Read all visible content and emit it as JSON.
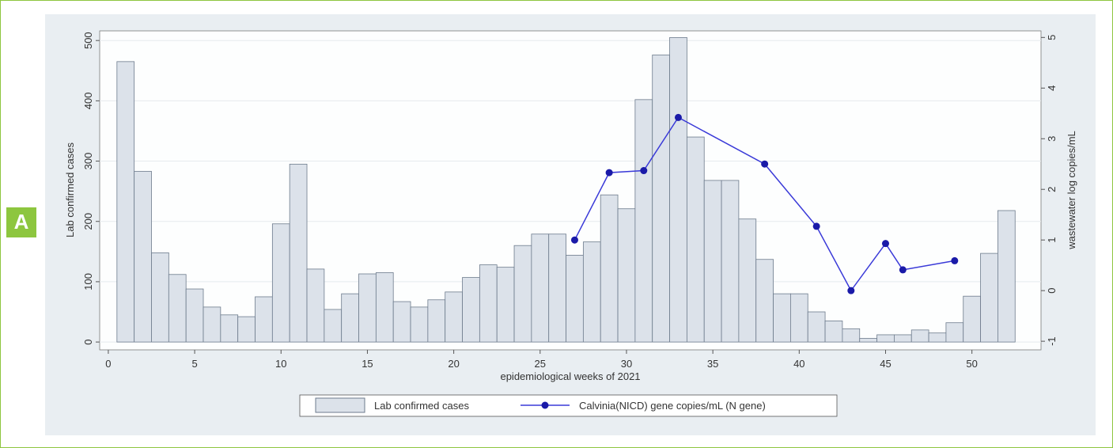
{
  "chart_data": {
    "type": "bar",
    "panel_label": "A",
    "xlabel": "epidemiological weeks of 2021",
    "ylabel": "Lab confirmed cases",
    "y2label": "wastewater log copies/mL",
    "x": [
      1,
      2,
      3,
      4,
      5,
      6,
      7,
      8,
      9,
      10,
      11,
      12,
      13,
      14,
      15,
      16,
      17,
      18,
      19,
      20,
      21,
      22,
      23,
      24,
      25,
      26,
      27,
      28,
      29,
      30,
      31,
      32,
      33,
      34,
      35,
      36,
      37,
      38,
      39,
      40,
      41,
      42,
      43,
      44,
      45,
      46,
      47,
      48,
      49,
      50,
      51,
      52
    ],
    "series": [
      {
        "name": "Lab confirmed cases",
        "type": "bar",
        "color": "#dce2ea",
        "values": [
          465,
          283,
          148,
          112,
          88,
          58,
          45,
          42,
          75,
          196,
          295,
          121,
          54,
          80,
          113,
          115,
          67,
          58,
          70,
          83,
          107,
          128,
          124,
          160,
          179,
          179,
          144,
          166,
          244,
          221,
          402,
          476,
          505,
          340,
          268,
          268,
          204,
          137,
          80,
          80,
          50,
          35,
          22,
          6,
          12,
          12,
          20,
          15,
          32,
          76,
          147,
          218
        ]
      },
      {
        "name": "Calvinia(NICD) gene copies/mL (N gene)",
        "type": "line",
        "axis": "y2",
        "color": "#3a3ad8",
        "x": [
          27,
          29,
          31,
          33,
          38,
          41,
          43,
          45,
          46,
          49
        ],
        "values": [
          1.0,
          2.33,
          2.37,
          3.42,
          2.5,
          1.27,
          0,
          0.93,
          0.41,
          0.59
        ]
      }
    ],
    "xlim": [
      -0.5,
      54
    ],
    "xticks": [
      0,
      5,
      10,
      15,
      20,
      25,
      30,
      35,
      40,
      45,
      50
    ],
    "ylim": [
      -13,
      516
    ],
    "yticks": [
      0,
      100,
      200,
      300,
      400,
      500
    ],
    "y2lim": [
      -1.17,
      5.13
    ],
    "y2ticks": [
      -1,
      0,
      1,
      2,
      3,
      4,
      5
    ],
    "grid": true,
    "legend": "bottom"
  }
}
